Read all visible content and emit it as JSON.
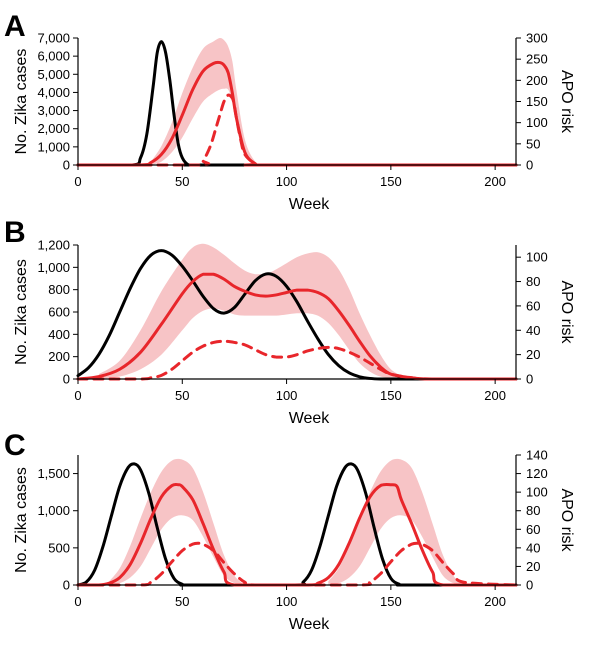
{
  "colors": {
    "cases": "#000000",
    "apo": "#e8262b",
    "band": "#f7c4c6"
  },
  "chart_data": [
    {
      "panel_label": "A",
      "type": "line",
      "xlabel": "Week",
      "ylabel_left": "No. Zika cases",
      "ylabel_right": "APO risk",
      "xlim": [
        0,
        210
      ],
      "xticks": [
        0,
        50,
        100,
        150,
        200
      ],
      "xtick_labels": [
        "0",
        "50",
        "100",
        "150",
        "200"
      ],
      "ylim_left": [
        0,
        7000
      ],
      "yticks_left": [
        0,
        1000,
        2000,
        3000,
        4000,
        5000,
        6000,
        7000
      ],
      "ytick_labels_left": [
        "0",
        "1,000",
        "2,000",
        "3,000",
        "4,000",
        "5,000",
        "6,000",
        "7,000"
      ],
      "ylim_right": [
        0,
        300
      ],
      "yticks_right": [
        0,
        50,
        100,
        150,
        200,
        250,
        300
      ],
      "ytick_labels_right": [
        "0",
        "50",
        "100",
        "150",
        "200",
        "250",
        "300"
      ],
      "series": [
        {
          "style": "black-solid",
          "axis": "left",
          "x": [
            0,
            26,
            30,
            33,
            36,
            38,
            40,
            42,
            44,
            46,
            48,
            50,
            53,
            56,
            60,
            210
          ],
          "y": [
            0,
            0,
            400,
            1700,
            4300,
            6200,
            6800,
            6200,
            4700,
            2800,
            1200,
            400,
            0,
            0,
            0,
            0
          ]
        },
        {
          "style": "red-solid",
          "axis": "right",
          "x": [
            0,
            30,
            35,
            40,
            45,
            50,
            55,
            60,
            65,
            68,
            70,
            72,
            74,
            76,
            80,
            85,
            90,
            210
          ],
          "y": [
            0,
            0,
            6,
            25,
            62,
            118,
            178,
            222,
            240,
            242,
            236,
            218,
            170,
            110,
            30,
            3,
            0,
            0
          ]
        },
        {
          "style": "red-dashed",
          "axis": "right",
          "x": [
            0,
            58,
            60,
            62,
            64,
            66,
            68,
            70,
            72,
            74,
            75,
            76,
            78,
            80,
            85,
            90,
            210
          ],
          "y": [
            0,
            0,
            10,
            28,
            52,
            85,
            118,
            150,
            165,
            158,
            140,
            110,
            60,
            25,
            3,
            0,
            0
          ]
        }
      ],
      "band": {
        "axis": "right",
        "x": [
          35,
          40,
          45,
          50,
          55,
          60,
          65,
          68,
          70,
          72,
          74,
          76,
          80,
          85,
          90
        ],
        "lower": [
          0,
          8,
          30,
          65,
          110,
          150,
          170,
          178,
          180,
          178,
          150,
          100,
          25,
          2,
          0
        ],
        "upper": [
          8,
          45,
          100,
          170,
          230,
          275,
          292,
          300,
          295,
          280,
          245,
          175,
          60,
          8,
          0
        ]
      }
    },
    {
      "panel_label": "B",
      "type": "line",
      "xlabel": "Week",
      "ylabel_left": "No. Zika cases",
      "ylabel_right": "APO risk",
      "xlim": [
        0,
        210
      ],
      "xticks": [
        0,
        50,
        100,
        150,
        200
      ],
      "xtick_labels": [
        "0",
        "50",
        "100",
        "150",
        "200"
      ],
      "ylim_left": [
        0,
        1200
      ],
      "yticks_left": [
        0,
        200,
        400,
        600,
        800,
        1000,
        1200
      ],
      "ytick_labels_left": [
        "0",
        "200",
        "400",
        "600",
        "800",
        "1,000",
        "1,200"
      ],
      "ylim_right": [
        0,
        110
      ],
      "yticks_right": [
        0,
        20,
        40,
        60,
        80,
        100
      ],
      "ytick_labels_right": [
        "0",
        "20",
        "40",
        "60",
        "80",
        "100"
      ],
      "series": [
        {
          "style": "black-solid",
          "axis": "left",
          "x": [
            0,
            5,
            10,
            15,
            20,
            25,
            30,
            35,
            40,
            45,
            50,
            55,
            60,
            65,
            70,
            75,
            80,
            85,
            90,
            95,
            100,
            105,
            110,
            115,
            120,
            125,
            130,
            135,
            140,
            145,
            150,
            160,
            210
          ],
          "y": [
            30,
            100,
            220,
            390,
            600,
            810,
            990,
            1110,
            1150,
            1110,
            1010,
            880,
            740,
            630,
            590,
            640,
            760,
            880,
            940,
            920,
            830,
            690,
            520,
            360,
            220,
            120,
            55,
            20,
            5,
            0,
            0,
            0,
            0
          ]
        },
        {
          "style": "red-solid",
          "axis": "right",
          "x": [
            0,
            10,
            20,
            30,
            40,
            50,
            55,
            60,
            65,
            70,
            75,
            80,
            85,
            90,
            95,
            100,
            105,
            110,
            115,
            120,
            125,
            130,
            135,
            140,
            145,
            150,
            160,
            170,
            210
          ],
          "y": [
            0,
            2,
            8,
            22,
            45,
            70,
            80,
            86,
            86,
            82,
            76,
            72,
            69,
            68,
            69,
            71,
            73,
            73,
            71,
            66,
            56,
            44,
            31,
            19,
            10,
            4,
            1,
            0,
            0
          ]
        },
        {
          "style": "red-dashed",
          "axis": "right",
          "x": [
            0,
            30,
            35,
            40,
            45,
            50,
            55,
            60,
            65,
            70,
            75,
            80,
            85,
            90,
            95,
            100,
            105,
            110,
            115,
            120,
            125,
            130,
            135,
            140,
            145,
            150,
            160,
            170,
            210
          ],
          "y": [
            0,
            0,
            1,
            3,
            8,
            15,
            22,
            27,
            30,
            31,
            30,
            28,
            24,
            20,
            18,
            18,
            20,
            23,
            25,
            26,
            25,
            22,
            18,
            13,
            8,
            4,
            1,
            0,
            0
          ]
        }
      ],
      "band": {
        "axis": "right",
        "x": [
          10,
          20,
          30,
          40,
          50,
          55,
          60,
          65,
          70,
          75,
          80,
          85,
          90,
          95,
          100,
          105,
          110,
          115,
          120,
          125,
          130,
          135,
          140,
          145,
          150,
          155,
          160
        ],
        "lower": [
          0,
          2,
          8,
          20,
          40,
          50,
          56,
          58,
          56,
          53,
          52,
          52,
          52,
          52,
          53,
          54,
          54,
          52,
          46,
          36,
          24,
          13,
          6,
          2,
          1,
          0,
          0
        ],
        "upper": [
          4,
          15,
          40,
          72,
          98,
          108,
          111,
          108,
          102,
          95,
          89,
          86,
          86,
          90,
          95,
          100,
          103,
          104,
          100,
          90,
          74,
          54,
          36,
          20,
          8,
          3,
          1
        ]
      }
    },
    {
      "panel_label": "C",
      "type": "line",
      "xlabel": "Week",
      "ylabel_left": "No. Zika cases",
      "ylabel_right": "APO risk",
      "xlim": [
        0,
        210
      ],
      "xticks": [
        0,
        50,
        100,
        150,
        200
      ],
      "xtick_labels": [
        "0",
        "50",
        "100",
        "150",
        "200"
      ],
      "ylim_left": [
        0,
        1750
      ],
      "yticks_left": [
        0,
        500,
        1000,
        1500
      ],
      "ytick_labels_left": [
        "0",
        "500",
        "1,000",
        "1,500"
      ],
      "ylim_right": [
        0,
        140
      ],
      "yticks_right": [
        0,
        20,
        40,
        60,
        80,
        100,
        120,
        140
      ],
      "ytick_labels_right": [
        "0",
        "20",
        "40",
        "60",
        "80",
        "100",
        "120",
        "140"
      ],
      "series": [
        {
          "style": "black-solid",
          "axis": "left",
          "x": [
            0,
            4,
            8,
            12,
            16,
            20,
            24,
            27,
            30,
            34,
            38,
            42,
            46,
            50,
            54,
            104,
            108,
            112,
            116,
            120,
            124,
            128,
            131,
            134,
            138,
            142,
            146,
            150,
            154,
            158,
            210
          ],
          "y": [
            0,
            40,
            200,
            520,
            930,
            1330,
            1580,
            1630,
            1550,
            1230,
            770,
            350,
            90,
            10,
            0,
            0,
            40,
            200,
            520,
            930,
            1330,
            1580,
            1630,
            1550,
            1230,
            770,
            350,
            90,
            10,
            0,
            0
          ]
        },
        {
          "style": "red-solid",
          "axis": "right",
          "x": [
            0,
            10,
            15,
            20,
            25,
            30,
            35,
            40,
            45,
            48,
            50,
            55,
            60,
            65,
            70,
            75,
            110,
            115,
            120,
            125,
            130,
            135,
            140,
            145,
            150,
            153,
            155,
            160,
            165,
            170,
            175,
            210
          ],
          "y": [
            0,
            0,
            2,
            8,
            22,
            45,
            72,
            95,
            107,
            108,
            106,
            92,
            66,
            38,
            14,
            0,
            0,
            2,
            8,
            22,
            45,
            72,
            95,
            107,
            108,
            106,
            92,
            66,
            38,
            14,
            0,
            0
          ]
        },
        {
          "style": "red-dashed",
          "axis": "right",
          "x": [
            0,
            30,
            35,
            40,
            45,
            50,
            55,
            58,
            60,
            65,
            70,
            75,
            80,
            85,
            135,
            140,
            145,
            150,
            155,
            160,
            163,
            165,
            170,
            175,
            180,
            185,
            210
          ],
          "y": [
            0,
            0,
            3,
            12,
            25,
            37,
            44,
            45,
            44,
            37,
            24,
            12,
            3,
            0,
            0,
            3,
            12,
            25,
            37,
            44,
            45,
            44,
            37,
            24,
            12,
            3,
            0
          ]
        }
      ],
      "band": [
        {
          "axis": "right",
          "x": [
            15,
            20,
            25,
            30,
            35,
            40,
            45,
            50,
            55,
            60,
            65,
            70,
            75,
            80
          ],
          "lower": [
            0,
            2,
            8,
            20,
            40,
            60,
            72,
            75,
            70,
            52,
            30,
            10,
            2,
            0
          ],
          "upper": [
            4,
            18,
            42,
            72,
            100,
            122,
            134,
            135,
            126,
            100,
            66,
            32,
            10,
            0
          ]
        },
        {
          "axis": "right",
          "x": [
            120,
            125,
            130,
            135,
            140,
            145,
            150,
            155,
            160,
            165,
            170,
            175,
            180,
            185
          ],
          "lower": [
            0,
            2,
            8,
            20,
            40,
            60,
            72,
            75,
            70,
            52,
            30,
            10,
            2,
            0
          ],
          "upper": [
            4,
            18,
            42,
            72,
            100,
            122,
            134,
            135,
            126,
            100,
            66,
            32,
            10,
            0
          ]
        }
      ]
    }
  ]
}
